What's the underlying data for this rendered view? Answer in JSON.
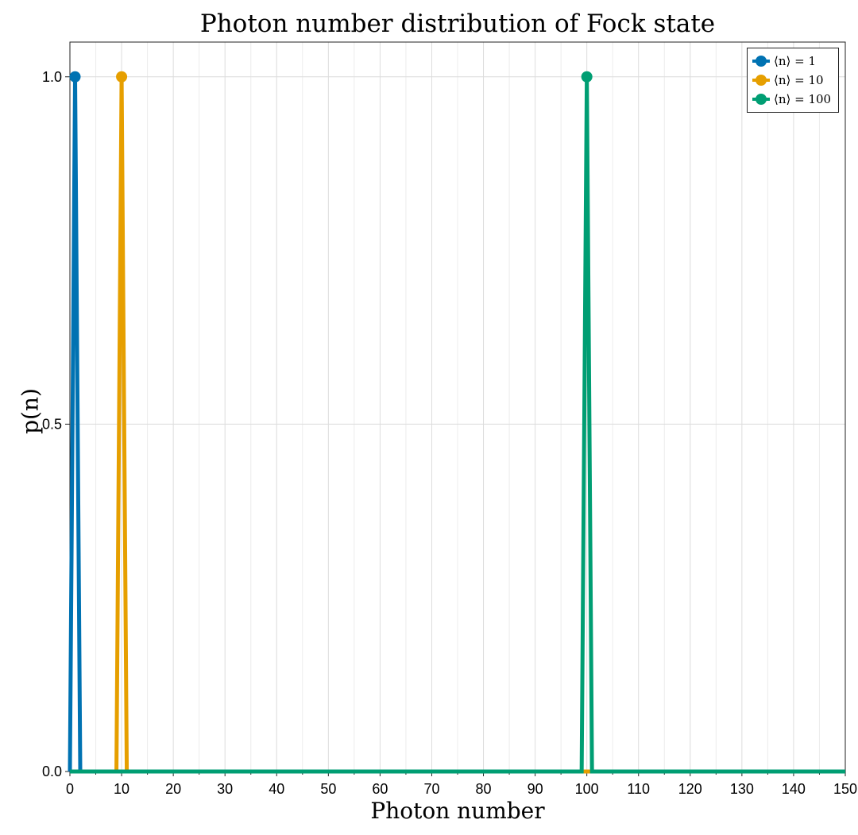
{
  "chart_data": {
    "type": "line",
    "title": "Photon number distribution of Fock state",
    "xlabel": "Photon number",
    "ylabel": "p(n)",
    "xlim": [
      0,
      150
    ],
    "ylim": [
      0,
      1.05
    ],
    "x_ticks": [
      0,
      10,
      20,
      30,
      40,
      50,
      60,
      70,
      80,
      90,
      100,
      110,
      120,
      130,
      140,
      150
    ],
    "x_tick_labels": [
      "0",
      "10",
      "20",
      "30",
      "40",
      "50",
      "60",
      "70",
      "80",
      "90",
      "100",
      "110",
      "120",
      "130",
      "140",
      "150"
    ],
    "y_ticks": [
      0.0,
      0.5,
      1.0
    ],
    "y_tick_labels": [
      "0.0",
      "0.5",
      "1.0"
    ],
    "grid": true,
    "legend_position": "top-right",
    "series": [
      {
        "name": "⟨n⟩ = 1",
        "color": "#0072B2",
        "peak_n": 1,
        "peak_p": 1.0,
        "marker_x": [
          1
        ],
        "marker_y": [
          1.0
        ]
      },
      {
        "name": "⟨n⟩ = 10",
        "color": "#E69F00",
        "peak_n": 10,
        "peak_p": 1.0,
        "marker_x": [
          10
        ],
        "marker_y": [
          1.0
        ]
      },
      {
        "name": "⟨n⟩ = 100",
        "color": "#009E73",
        "peak_n": 100,
        "peak_p": 1.0,
        "marker_x": [
          100
        ],
        "marker_y": [
          1.0
        ]
      }
    ]
  }
}
